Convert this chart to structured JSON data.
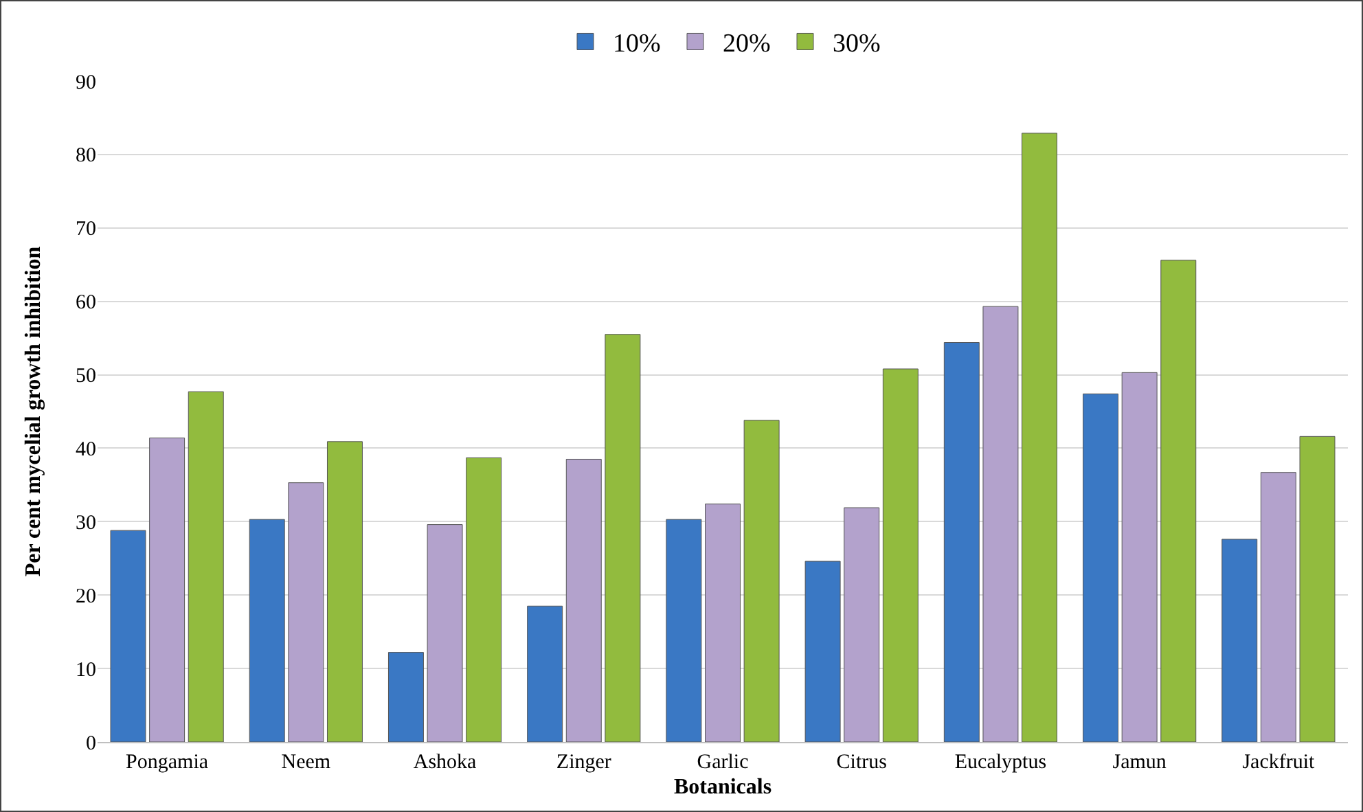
{
  "chart_data": {
    "type": "bar",
    "xlabel": "Botanicals",
    "ylabel": "Per cent mycelial growth inhibition",
    "categories": [
      "Pongamia",
      "Neem",
      "Ashoka",
      "Zinger",
      "Garlic",
      "Citrus",
      "Eucalyptus",
      "Jamun",
      "Jackfruit"
    ],
    "series": [
      {
        "name": "10%",
        "color": "#3a78c4",
        "values": [
          28.8,
          30.3,
          12.2,
          18.5,
          30.3,
          24.6,
          54.4,
          47.4,
          27.6
        ]
      },
      {
        "name": "20%",
        "color": "#b3a2cc",
        "values": [
          41.4,
          35.3,
          29.6,
          38.5,
          32.4,
          31.9,
          59.3,
          50.3,
          36.7
        ]
      },
      {
        "name": "30%",
        "color": "#92bb3e",
        "values": [
          47.7,
          40.9,
          38.7,
          55.5,
          43.8,
          50.8,
          82.9,
          65.6,
          41.6
        ]
      }
    ],
    "ylim": [
      0,
      90
    ],
    "yticks": [
      0,
      10,
      20,
      30,
      40,
      50,
      60,
      70,
      80,
      90
    ],
    "grid": "y",
    "legend": "top"
  }
}
